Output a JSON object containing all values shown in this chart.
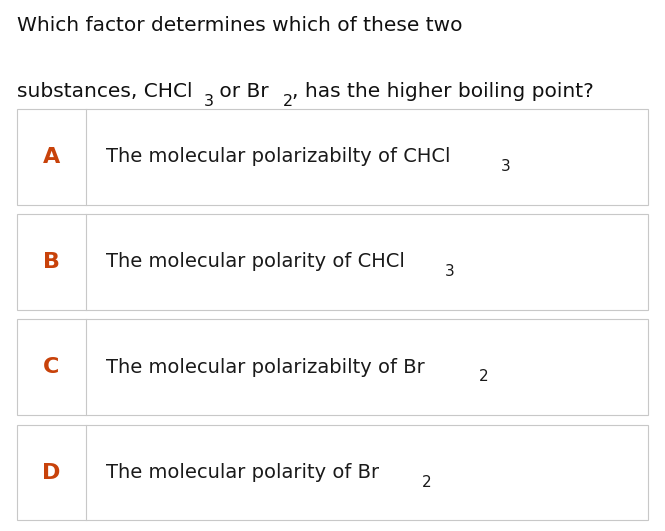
{
  "title_line1": "Which factor determines which of these two",
  "title_line2_parts": [
    {
      "text": "substances, CHCl",
      "subscript": null
    },
    {
      "text": "3",
      "subscript": true
    },
    {
      "text": " or Br",
      "subscript": null
    },
    {
      "text": "2",
      "subscript": true
    },
    {
      "text": ", has the higher boiling point?",
      "subscript": null
    }
  ],
  "options": [
    {
      "letter": "A",
      "text_parts": [
        {
          "text": "The molecular polarizabilty of CHCl",
          "sub": null
        },
        {
          "text": "3",
          "sub": true
        }
      ]
    },
    {
      "letter": "B",
      "text_parts": [
        {
          "text": "The molecular polarity of CHCl",
          "sub": null
        },
        {
          "text": "3",
          "sub": true
        }
      ]
    },
    {
      "letter": "C",
      "text_parts": [
        {
          "text": "The molecular polarizabilty of Br",
          "sub": null
        },
        {
          "text": "2",
          "sub": true
        }
      ]
    },
    {
      "letter": "D",
      "text_parts": [
        {
          "text": "The molecular polarity of Br",
          "sub": null
        },
        {
          "text": "2",
          "sub": true
        }
      ]
    }
  ],
  "letter_color": "#c8420a",
  "text_color": "#1a1a1a",
  "bg_color": "#ffffff",
  "border_color": "#c8c8c8",
  "title_color": "#111111",
  "letter_fontsize": 15,
  "text_fontsize": 14,
  "title_fontsize": 14.5
}
